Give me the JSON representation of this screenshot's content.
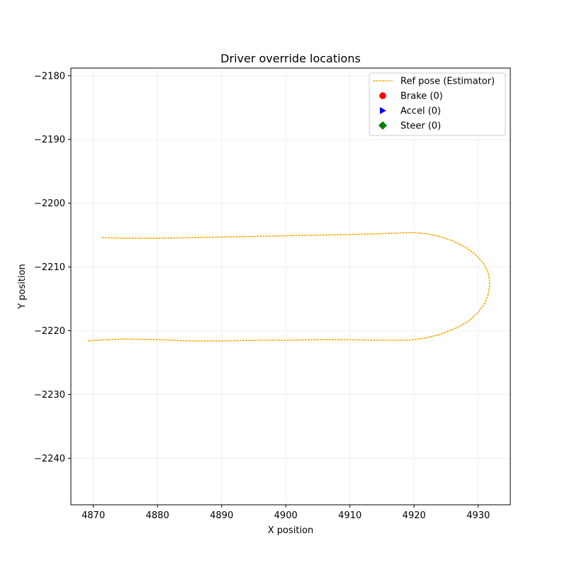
{
  "chart_data": {
    "type": "line",
    "title": "Driver override locations",
    "xlabel": "X position",
    "ylabel": "Y position",
    "xlim": [
      4866.5,
      4935.0
    ],
    "ylim": [
      -2247.3,
      -2178.8
    ],
    "xticks": [
      4870,
      4880,
      4890,
      4900,
      4910,
      4920,
      4930
    ],
    "yticks": [
      -2180,
      -2190,
      -2200,
      -2210,
      -2220,
      -2230,
      -2240
    ],
    "grid": true,
    "legend_position": "top-right",
    "legend": [
      {
        "label": "Ref pose (Estimator)",
        "kind": "line",
        "color": "#ffa500",
        "style": "dotted"
      },
      {
        "label": "Brake (0)",
        "kind": "marker",
        "marker": "octagon",
        "color": "#ff0000"
      },
      {
        "label": "Accel (0)",
        "kind": "marker",
        "marker": "triangle-right",
        "color": "#0000ff"
      },
      {
        "label": "Steer (0)",
        "kind": "marker",
        "marker": "diamond",
        "color": "#008000"
      }
    ],
    "series": [
      {
        "name": "Ref pose (Estimator)",
        "color": "#ffa500",
        "style": "dotted",
        "points": [
          [
            4871.4,
            -2205.4
          ],
          [
            4875.0,
            -2205.5
          ],
          [
            4880.0,
            -2205.5
          ],
          [
            4885.0,
            -2205.4
          ],
          [
            4890.0,
            -2205.3
          ],
          [
            4895.0,
            -2205.2
          ],
          [
            4900.0,
            -2205.1
          ],
          [
            4905.0,
            -2205.0
          ],
          [
            4910.0,
            -2204.9
          ],
          [
            4914.0,
            -2204.8
          ],
          [
            4917.0,
            -2204.7
          ],
          [
            4920.0,
            -2204.6
          ],
          [
            4922.0,
            -2204.8
          ],
          [
            4924.0,
            -2205.2
          ],
          [
            4926.0,
            -2205.9
          ],
          [
            4928.0,
            -2206.9
          ],
          [
            4929.5,
            -2208.0
          ],
          [
            4930.8,
            -2209.4
          ],
          [
            4931.6,
            -2211.0
          ],
          [
            4931.8,
            -2212.5
          ],
          [
            4931.6,
            -2214.2
          ],
          [
            4931.0,
            -2215.7
          ],
          [
            4930.0,
            -2217.1
          ],
          [
            4928.5,
            -2218.5
          ],
          [
            4926.5,
            -2219.6
          ],
          [
            4924.0,
            -2220.6
          ],
          [
            4921.5,
            -2221.2
          ],
          [
            4919.0,
            -2221.5
          ],
          [
            4917.0,
            -2221.5
          ],
          [
            4914.0,
            -2221.5
          ],
          [
            4910.0,
            -2221.4
          ],
          [
            4905.0,
            -2221.4
          ],
          [
            4900.0,
            -2221.5
          ],
          [
            4895.0,
            -2221.5
          ],
          [
            4890.0,
            -2221.6
          ],
          [
            4885.0,
            -2221.6
          ],
          [
            4880.0,
            -2221.4
          ],
          [
            4875.0,
            -2221.3
          ],
          [
            4872.0,
            -2221.4
          ],
          [
            4869.2,
            -2221.6
          ]
        ]
      },
      {
        "name": "Brake (0)",
        "color": "#ff0000",
        "points": []
      },
      {
        "name": "Accel (0)",
        "color": "#0000ff",
        "points": []
      },
      {
        "name": "Steer (0)",
        "color": "#008000",
        "points": []
      }
    ]
  }
}
